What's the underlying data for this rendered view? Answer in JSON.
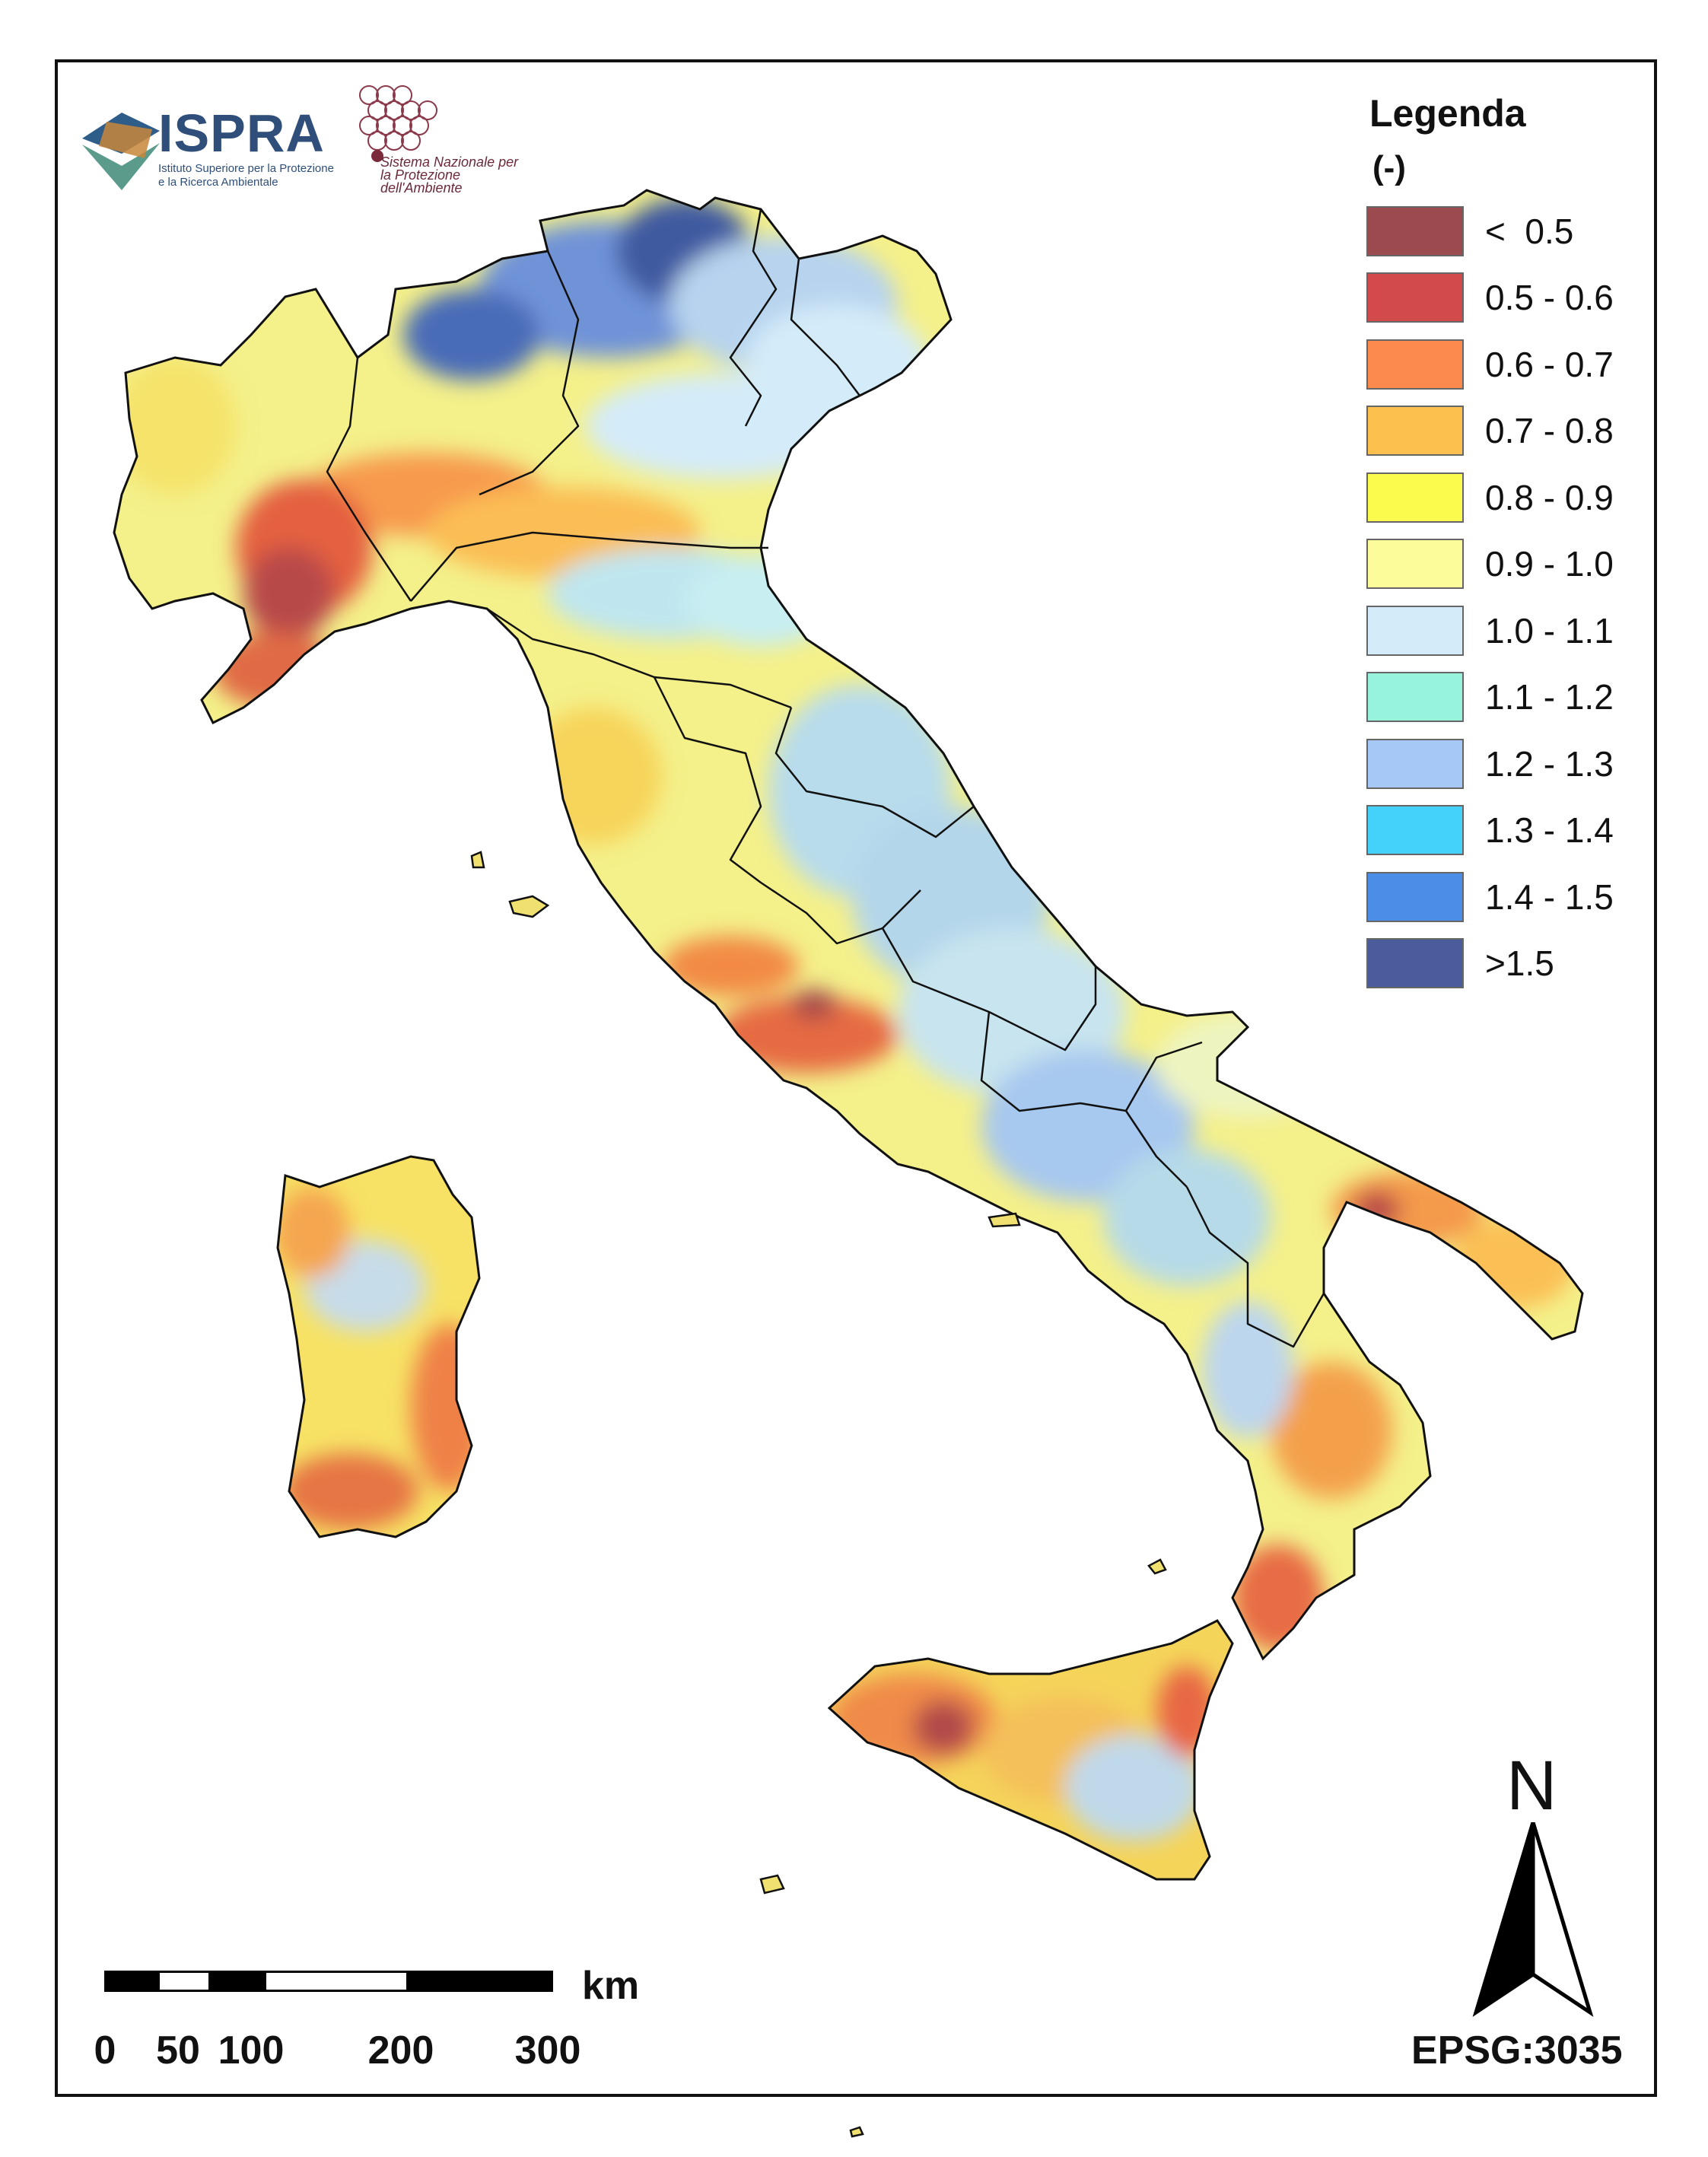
{
  "logos": {
    "ispra_name": "ISPRA",
    "ispra_subtitle": "Istituto Superiore per la Protezione e la Ricerca Ambientale",
    "snpa_text": "Sistema Nazionale per la Protezione dell'Ambiente"
  },
  "legend": {
    "title": "Legenda",
    "unit": "(-)",
    "items": [
      {
        "label": "<  0.5",
        "color": "#9b4a4f"
      },
      {
        "label": "0.5 - 0.6",
        "color": "#d24a4a"
      },
      {
        "label": "0.6 - 0.7",
        "color": "#fb8a4c"
      },
      {
        "label": "0.7 - 0.8",
        "color": "#fcc04e"
      },
      {
        "label": "0.8 - 0.9",
        "color": "#fbfb4e"
      },
      {
        "label": "0.9 - 1.0",
        "color": "#fcfc9a"
      },
      {
        "label": "1.0 - 1.1",
        "color": "#d4ecf9"
      },
      {
        "label": "1.1 - 1.2",
        "color": "#98f3dd"
      },
      {
        "label": "1.2 - 1.3",
        "color": "#a6c8f7"
      },
      {
        "label": "1.3 - 1.4",
        "color": "#44d2fa"
      },
      {
        "label": "1.4 - 1.5",
        "color": "#4a8ee8"
      },
      {
        "label": ">1.5",
        "color": "#4a5c9c"
      }
    ]
  },
  "scale_bar": {
    "unit": "km",
    "ticks": [
      "0",
      "50",
      "100",
      "200",
      "300"
    ]
  },
  "north_arrow": {
    "label": "N"
  },
  "crs": "EPSG:3035"
}
